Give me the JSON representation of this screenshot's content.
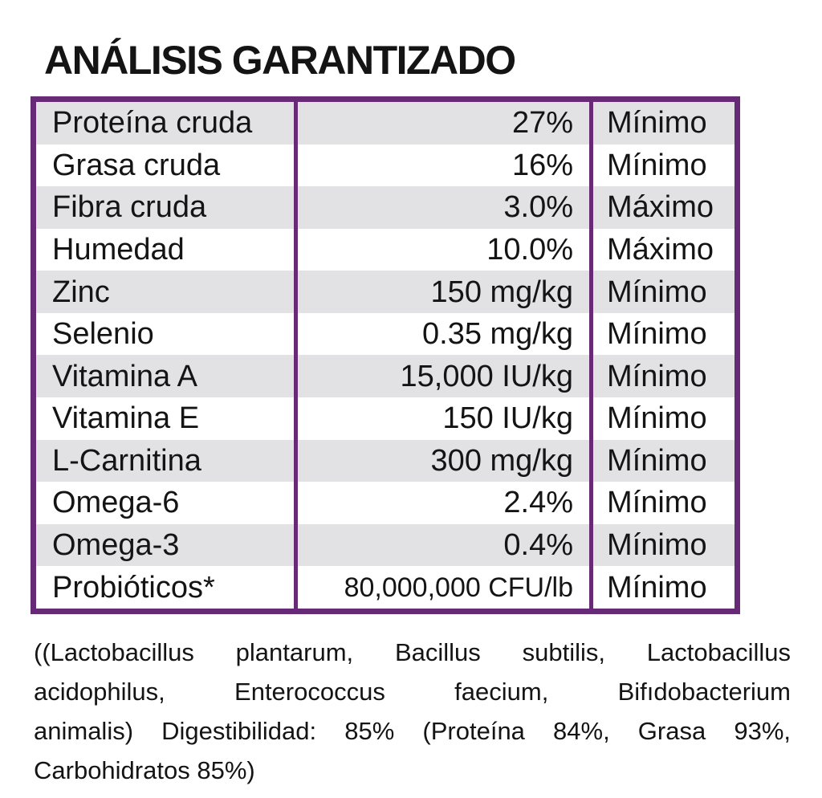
{
  "title": "ANÁLISIS GARANTIZADO",
  "colors": {
    "accent_purple": "#672a77",
    "row_shade_gray": "#e2e2e4",
    "text_black": "#141414"
  },
  "table": {
    "rows": [
      {
        "nutrient": "Proteína cruda",
        "value": "27%",
        "basis": "Mínimo"
      },
      {
        "nutrient": "Grasa cruda",
        "value": "16%",
        "basis": "Mínimo"
      },
      {
        "nutrient": "Fibra cruda",
        "value": "3.0%",
        "basis": "Máximo"
      },
      {
        "nutrient": "Humedad",
        "value": "10.0%",
        "basis": "Máximo"
      },
      {
        "nutrient": "Zinc",
        "value": "150 mg/kg",
        "basis": "Mínimo"
      },
      {
        "nutrient": "Selenio",
        "value": "0.35 mg/kg",
        "basis": "Mínimo"
      },
      {
        "nutrient": "Vitamina A",
        "value": "15,000 IU/kg",
        "basis": "Mínimo"
      },
      {
        "nutrient": "Vitamina E",
        "value": "150 IU/kg",
        "basis": "Mínimo"
      },
      {
        "nutrient": "L-Carnitina",
        "value": "300 mg/kg",
        "basis": "Mínimo"
      },
      {
        "nutrient": "Omega-6",
        "value": "2.4%",
        "basis": "Mínimo"
      },
      {
        "nutrient": "Omega-3",
        "value": "0.4%",
        "basis": "Mínimo"
      },
      {
        "nutrient": "Probióticos*",
        "value": "80,000,000 CFU/lb",
        "basis": "Mínimo"
      }
    ]
  },
  "footnote": {
    "lines": [
      "((Lactobacillus plantarum, Bacillus subtilis, Lactobacillus",
      "acidophilus, Enterococcus faecium, Bifıdobacterium",
      "animalis) Digestibilidad: 85% (Proteína 84%, Grasa 93%,",
      "Carbohidratos 85%)"
    ]
  }
}
